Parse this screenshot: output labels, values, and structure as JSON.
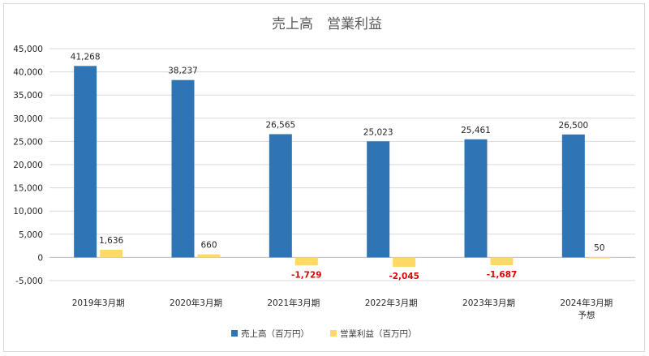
{
  "chart_data": {
    "type": "bar",
    "title": "売上高　営業利益",
    "categories": [
      [
        "2019年3月期"
      ],
      [
        "2020年3月期"
      ],
      [
        "2021年3月期"
      ],
      [
        "2022年3月期"
      ],
      [
        "2023年3月期"
      ],
      [
        "2024年3月期",
        "予想"
      ]
    ],
    "series": [
      {
        "name": "売上高（百万円）",
        "color": "#2e75b6",
        "values": [
          41268,
          38237,
          26565,
          25023,
          25461,
          26500
        ],
        "labels": [
          "41,268",
          "38,237",
          "26,565",
          "25,023",
          "25,461",
          "26,500"
        ]
      },
      {
        "name": "営業利益（百万円）",
        "color": "#ffd966",
        "values": [
          1636,
          660,
          -1729,
          -2045,
          -1687,
          50
        ],
        "labels": [
          "1,636",
          "660",
          "-1,729",
          "-2,045",
          "-1,687",
          "50"
        ]
      }
    ],
    "ylim": [
      -5000,
      45000
    ],
    "yticks": [
      {
        "value": 45000,
        "label": "45,000"
      },
      {
        "value": 40000,
        "label": "40,000"
      },
      {
        "value": 35000,
        "label": "35,000"
      },
      {
        "value": 30000,
        "label": "30,000"
      },
      {
        "value": 25000,
        "label": "25,000"
      },
      {
        "value": 20000,
        "label": "20,000"
      },
      {
        "value": 15000,
        "label": "15,000"
      },
      {
        "value": 10000,
        "label": "10,000"
      },
      {
        "value": 5000,
        "label": "5,000"
      },
      {
        "value": 0,
        "label": "0"
      },
      {
        "value": -5000,
        "label": "-5,000"
      }
    ],
    "negative_label_color": "#e00000",
    "grid": true,
    "legend": "bottom"
  }
}
